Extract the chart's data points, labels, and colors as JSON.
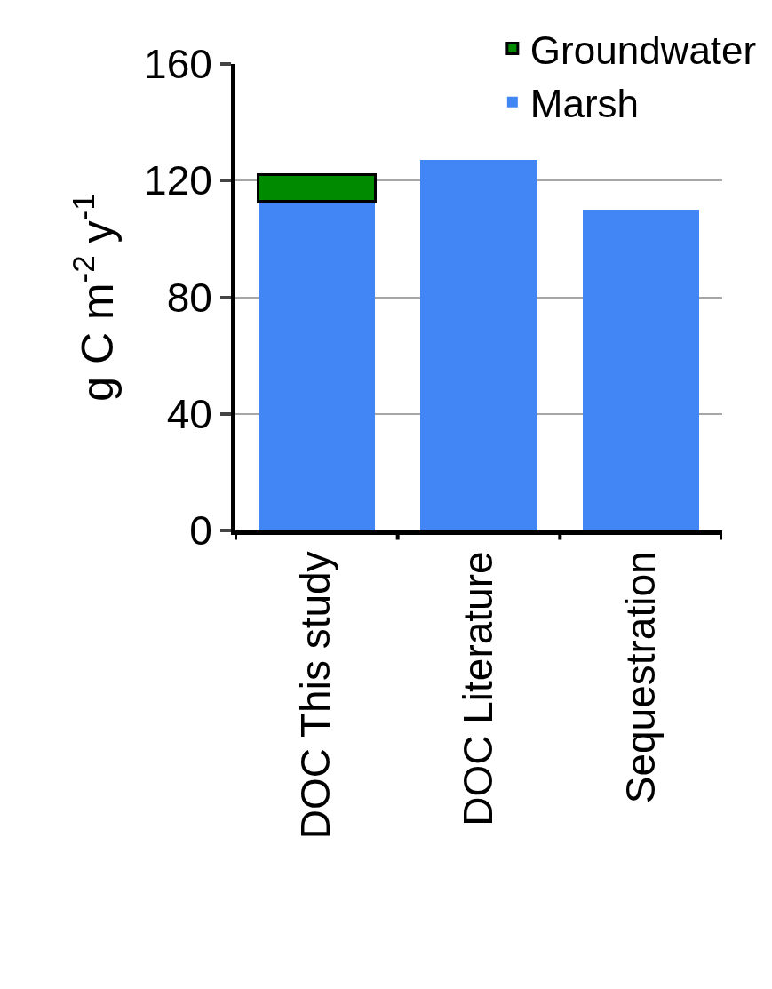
{
  "chart_data": {
    "type": "bar",
    "stacked": true,
    "ylabel": "g C m$^{-2}$ y$^{-1}$",
    "categories": [
      "DOC This study",
      "DOC Literature",
      "Sequestration"
    ],
    "series": [
      {
        "name": "Marsh",
        "color": "#4285f4",
        "values": [
          113,
          127,
          110
        ]
      },
      {
        "name": "Groundwater",
        "color": "#008a00",
        "values": [
          9,
          null,
          null
        ]
      }
    ],
    "ylim": [
      0,
      160
    ],
    "yticks": [
      0,
      40,
      80,
      120,
      160
    ],
    "grid": "y",
    "legend": "top right"
  }
}
